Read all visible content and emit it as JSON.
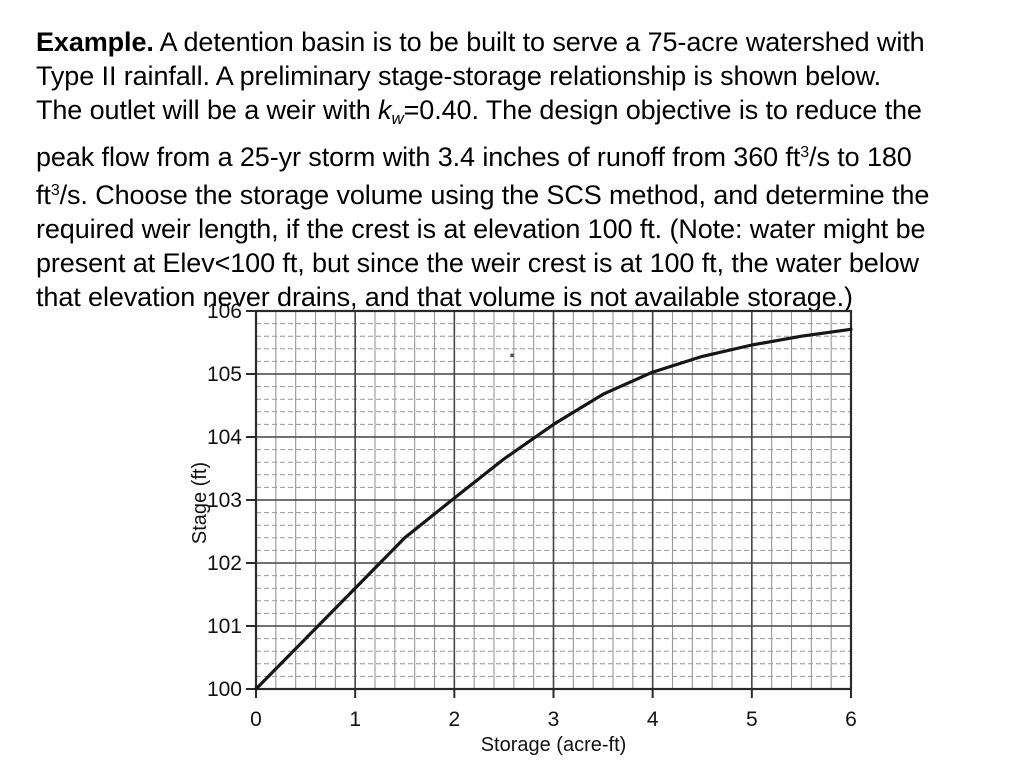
{
  "slide": {
    "background": "#ffffff",
    "text_color": "#000000"
  },
  "problem_text": {
    "lines": [
      [
        {
          "t": "Example.",
          "s": "b"
        },
        {
          "t": " A detention basin is to be built to serve a 75-acre watershed with",
          "s": "n"
        }
      ],
      [
        {
          "t": "Type II rainfall. A preliminary stage-storage relationship is shown below.",
          "s": "n"
        }
      ],
      [
        {
          "t": "The outlet will be a weir with ",
          "s": "n"
        },
        {
          "t": "k",
          "s": "i"
        },
        {
          "t": "w",
          "s": "sub"
        },
        {
          "t": "=0.40. The design objective is to reduce the",
          "s": "n"
        }
      ],
      [
        {
          "t": "peak flow from a 25-yr storm with 3.4 inches of runoff from 360 ft",
          "s": "n"
        },
        {
          "t": "3",
          "s": "sup"
        },
        {
          "t": "/s to 180",
          "s": "n"
        }
      ],
      [
        {
          "t": "ft",
          "s": "n"
        },
        {
          "t": "3",
          "s": "sup"
        },
        {
          "t": "/s. Choose the storage volume using the SCS method, and determine the",
          "s": "n"
        }
      ],
      [
        {
          "t": "required weir length, if the crest is at elevation 100 ft. (Note: water might be",
          "s": "n"
        }
      ],
      [
        {
          "t": "present at Elev<100 ft, but since the weir crest is at 100 ft, the water below",
          "s": "n"
        }
      ],
      [
        {
          "t": "that elevation never drains, and that volume is not available storage.)",
          "s": "n"
        }
      ]
    ]
  },
  "chart_data": {
    "type": "line",
    "title": "",
    "xlabel": "Storage (acre-ft)",
    "ylabel": "Stage (ft)",
    "xlim": [
      0,
      6
    ],
    "ylim": [
      100,
      106
    ],
    "x_ticks": [
      0,
      1,
      2,
      3,
      4,
      5,
      6
    ],
    "y_ticks": [
      100,
      101,
      102,
      103,
      104,
      105,
      106
    ],
    "minor_step": 0.2,
    "grid": "minor and major, graph-paper style",
    "legend": "none",
    "series": [
      {
        "name": "stage-storage relationship",
        "x": [
          0,
          0.5,
          1,
          1.5,
          2,
          2.5,
          3,
          3.5,
          4,
          4.5,
          5,
          5.5,
          6
        ],
        "y": [
          100,
          100.8,
          101.6,
          102.4,
          103.03,
          103.65,
          104.2,
          104.68,
          105.03,
          105.28,
          105.46,
          105.6,
          105.71
        ]
      }
    ],
    "colors": {
      "curve": "#161616",
      "grid_minor": "#979797",
      "grid_major": "#444444",
      "axis": "#2a2a2a",
      "label": "#111111"
    },
    "artifact_specks": [
      {
        "x": 2.58,
        "y": 105.3
      }
    ]
  }
}
